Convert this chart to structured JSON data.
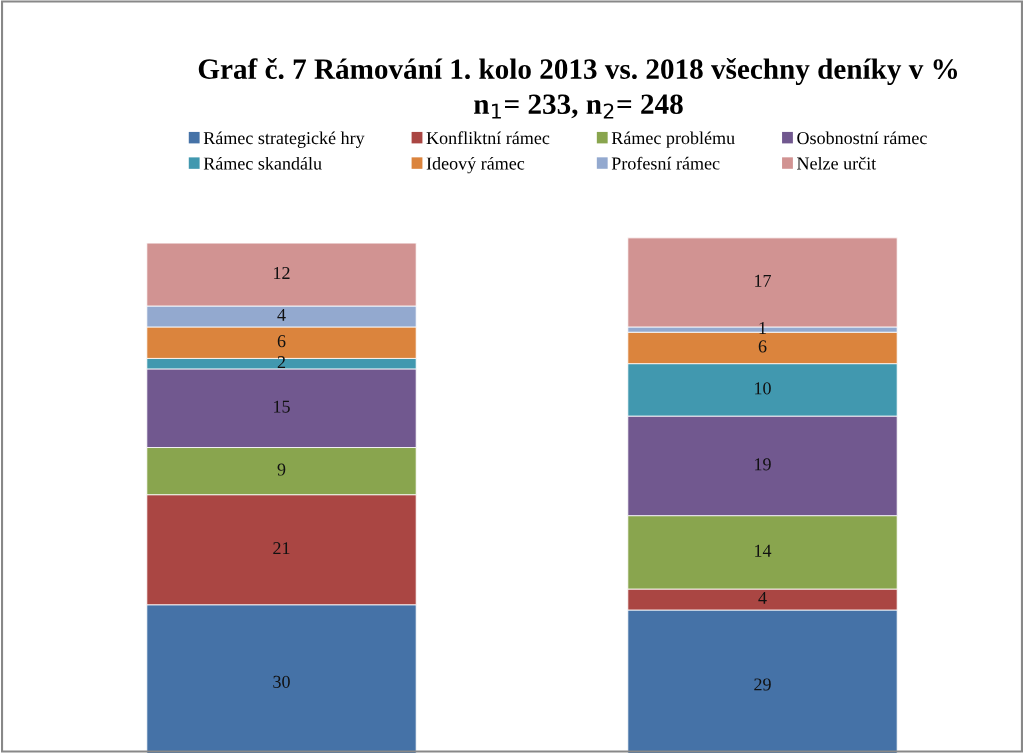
{
  "chart_data": {
    "type": "bar",
    "title": "Graf č. 7 Rámování 1. kolo 2013 vs. 2018 všechny deníky v %",
    "subtitle": "n$_{1}$= 233, n$_{2}$= 248",
    "categories": [
      null,
      null
    ],
    "stacked": true,
    "data_labels": true,
    "legend": "top",
    "grid": false,
    "series": [
      {
        "name": "Rámec strategické hry",
        "color": "#4572a7",
        "values": [
          30,
          29
        ]
      },
      {
        "name": "Konfliktní rámec",
        "color": "#aa4643",
        "values": [
          21,
          4
        ]
      },
      {
        "name": "Rámec problému",
        "color": "#89a54e",
        "values": [
          9,
          14
        ]
      },
      {
        "name": "Osobnostní rámec",
        "color": "#71588f",
        "values": [
          15,
          19
        ]
      },
      {
        "name": "Rámec skandálu",
        "color": "#4198af",
        "values": [
          2,
          10
        ]
      },
      {
        "name": "Ideový rámec",
        "color": "#db843d",
        "values": [
          6,
          6
        ]
      },
      {
        "name": "Profesní rámec",
        "color": "#93a9cf",
        "values": [
          4,
          1
        ]
      },
      {
        "name": "Nelze určit",
        "color": "#d19392",
        "values": [
          12,
          17
        ]
      }
    ]
  }
}
